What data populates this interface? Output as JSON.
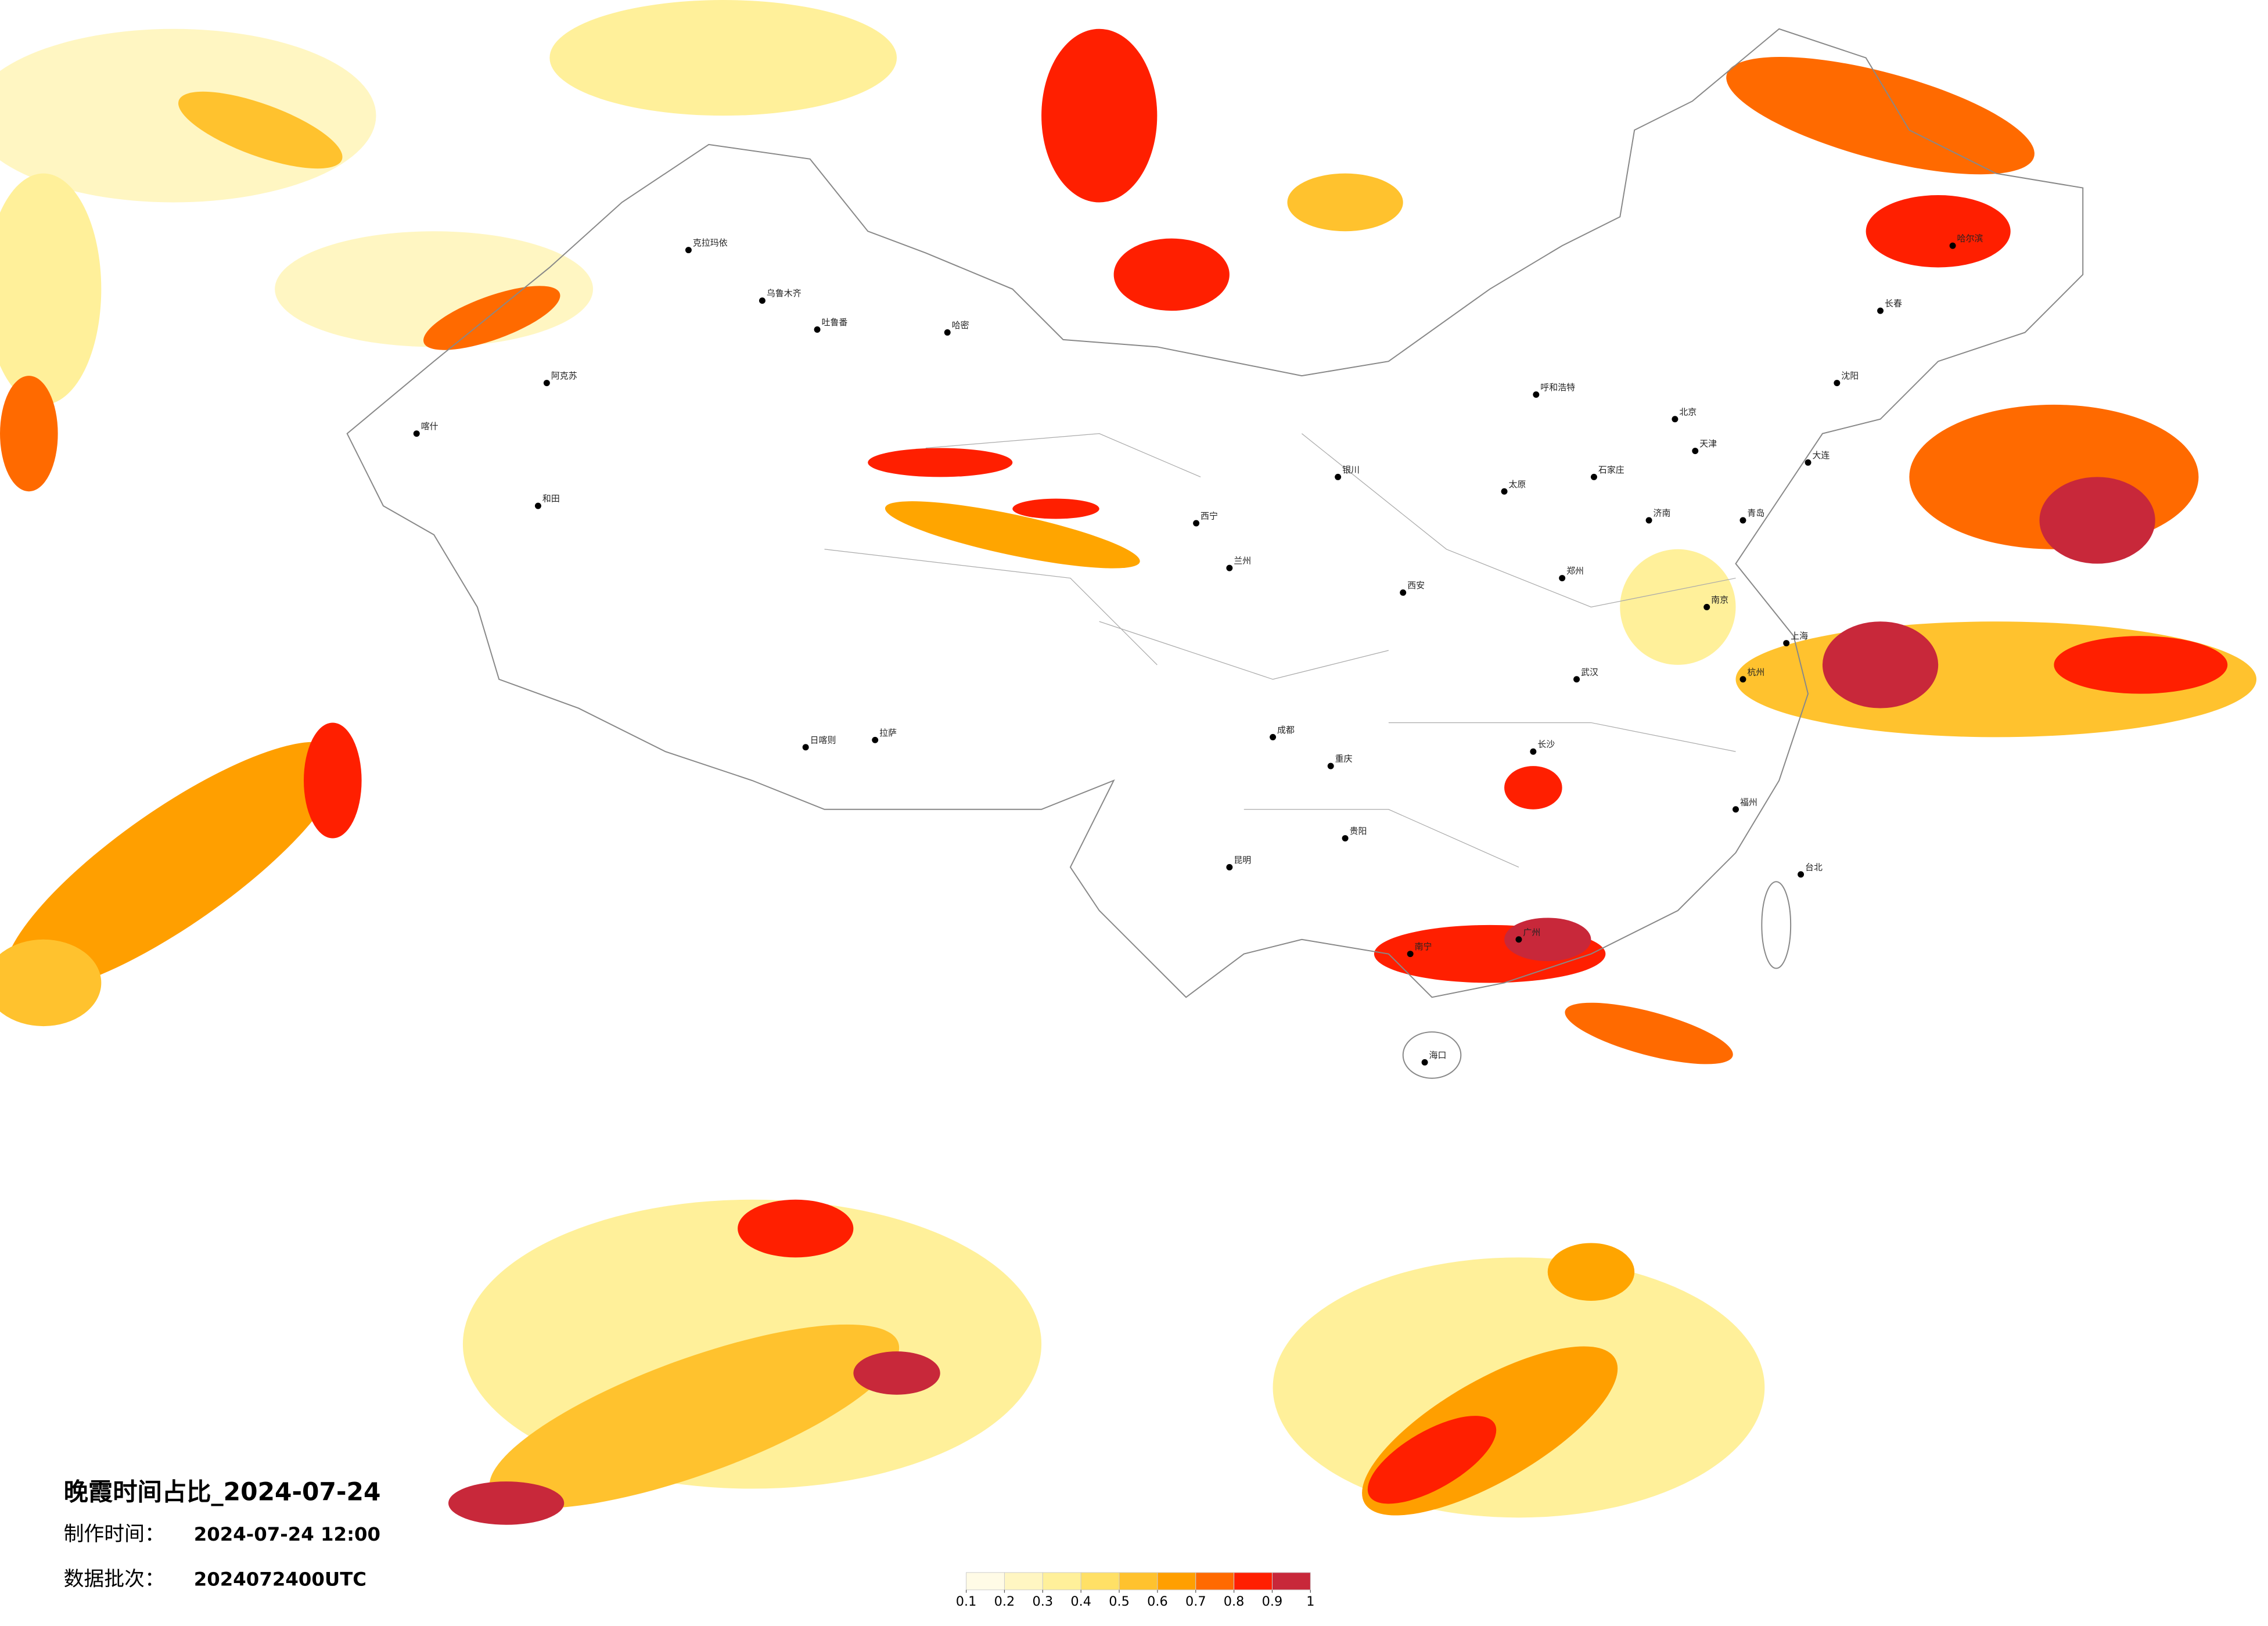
{
  "header": {
    "title": "晚霞时间占比_2024-07-24",
    "made_label": "制作时间：",
    "made_time": "2024-07-24 12:00",
    "batch_label": "数据批次：",
    "batch": "2024072400UTC"
  },
  "legend": {
    "ticks": [
      0.1,
      0.2,
      0.3,
      0.4,
      0.5,
      0.6,
      0.7,
      0.8,
      0.9,
      1
    ],
    "colors": [
      "#fffbe6",
      "#fff6c2",
      "#fff09a",
      "#ffe066",
      "#ffc22e",
      "#ff9f00",
      "#ff6a00",
      "#ff1f00",
      "#c8283a"
    ]
  },
  "map": {
    "cities": [
      "克拉玛依",
      "乌鲁木齐",
      "吐鲁番",
      "哈密",
      "喀什",
      "阿克苏",
      "和田",
      "拉萨",
      "日喀则",
      "西宁",
      "兰州",
      "银川",
      "呼和浩特",
      "太原",
      "北京",
      "天津",
      "石家庄",
      "济南",
      "青岛",
      "郑州",
      "西安",
      "成都",
      "重庆",
      "贵阳",
      "昆明",
      "南宁",
      "广州",
      "海口",
      "长沙",
      "武汉",
      "南京",
      "上海",
      "杭州",
      "福州",
      "台北",
      "沈阳",
      "大连",
      "长春",
      "哈尔滨"
    ]
  }
}
